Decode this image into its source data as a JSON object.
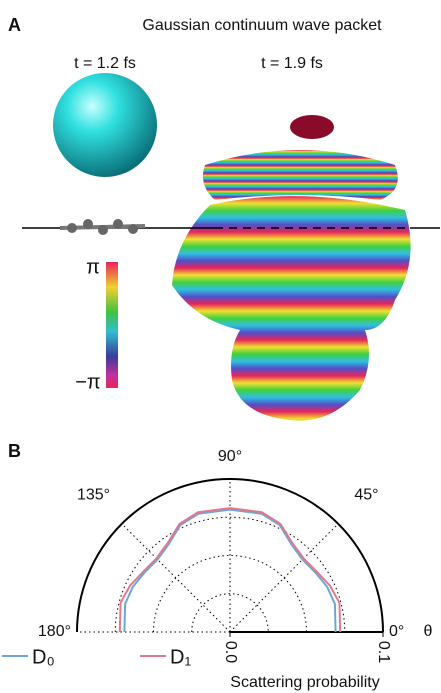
{
  "panel_a": {
    "label": "A",
    "title": "Gaussian continuum wave packet",
    "times": [
      "t = 1.2 fs",
      "t = 1.9 fs"
    ],
    "colorbar": {
      "max_label": "π",
      "min_label": "−π"
    }
  },
  "chart_data": {
    "type": "polar",
    "panel_label": "B",
    "theta": [
      0,
      15,
      25,
      35,
      45,
      55,
      65,
      75,
      90,
      105,
      115,
      125,
      135,
      145,
      155,
      165,
      180
    ],
    "series": [
      {
        "name": "D₀",
        "color": "#6ca6d9",
        "values": [
          0.069,
          0.071,
          0.07,
          0.068,
          0.067,
          0.07,
          0.077,
          0.08,
          0.08,
          0.08,
          0.077,
          0.07,
          0.067,
          0.068,
          0.07,
          0.071,
          0.069
        ]
      },
      {
        "name": "D₁",
        "color": "#e07a8a",
        "values": [
          0.072,
          0.074,
          0.072,
          0.069,
          0.068,
          0.071,
          0.078,
          0.081,
          0.081,
          0.081,
          0.078,
          0.071,
          0.068,
          0.069,
          0.072,
          0.074,
          0.072
        ]
      }
    ],
    "rlim": [
      0,
      0.1
    ],
    "rticks": [
      {
        "value": 0,
        "label": "0.0"
      },
      {
        "value": 0.1,
        "label": "0.1"
      }
    ],
    "rgrid": [
      0.025,
      0.05,
      0.075
    ],
    "thetaticks": [
      {
        "value": 0,
        "label": "0°"
      },
      {
        "value": 45,
        "label": "45°"
      },
      {
        "value": 90,
        "label": "90°"
      },
      {
        "value": 135,
        "label": "135°"
      },
      {
        "value": 180,
        "label": "180°"
      }
    ],
    "theta_label": "θ",
    "r_label": "Scattering probability"
  }
}
